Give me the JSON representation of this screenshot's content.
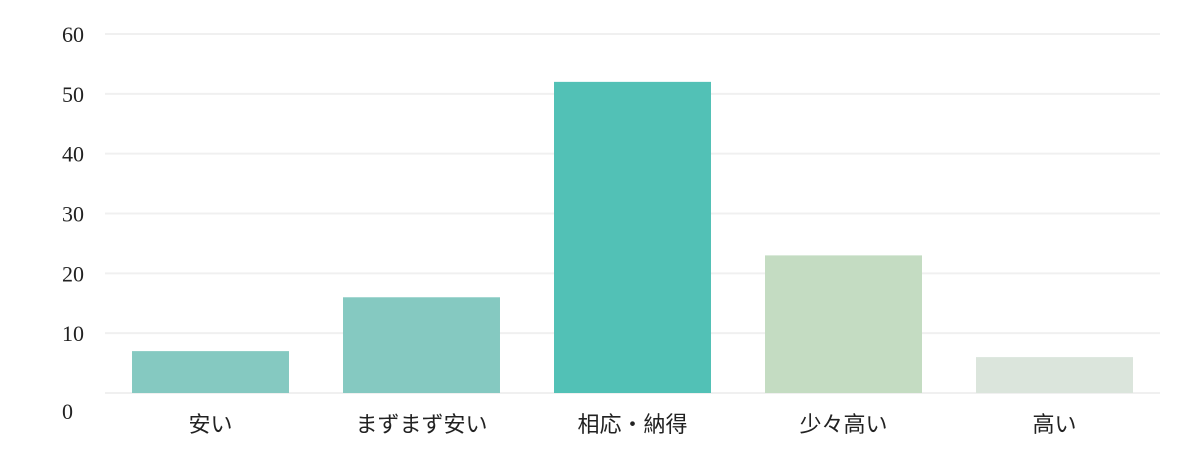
{
  "chart_data": {
    "type": "bar",
    "categories": [
      "安い",
      "まずまず安い",
      "相応・納得",
      "少々高い",
      "高い"
    ],
    "values": [
      7,
      16,
      52,
      23,
      6
    ],
    "colors": [
      "#85c9c1",
      "#85c9c1",
      "#52c1b6",
      "#c4dcc2",
      "#dbe5dc"
    ],
    "ylim": [
      0,
      60
    ],
    "yticks": [
      0,
      10,
      20,
      30,
      40,
      50,
      60
    ],
    "grid": true
  }
}
